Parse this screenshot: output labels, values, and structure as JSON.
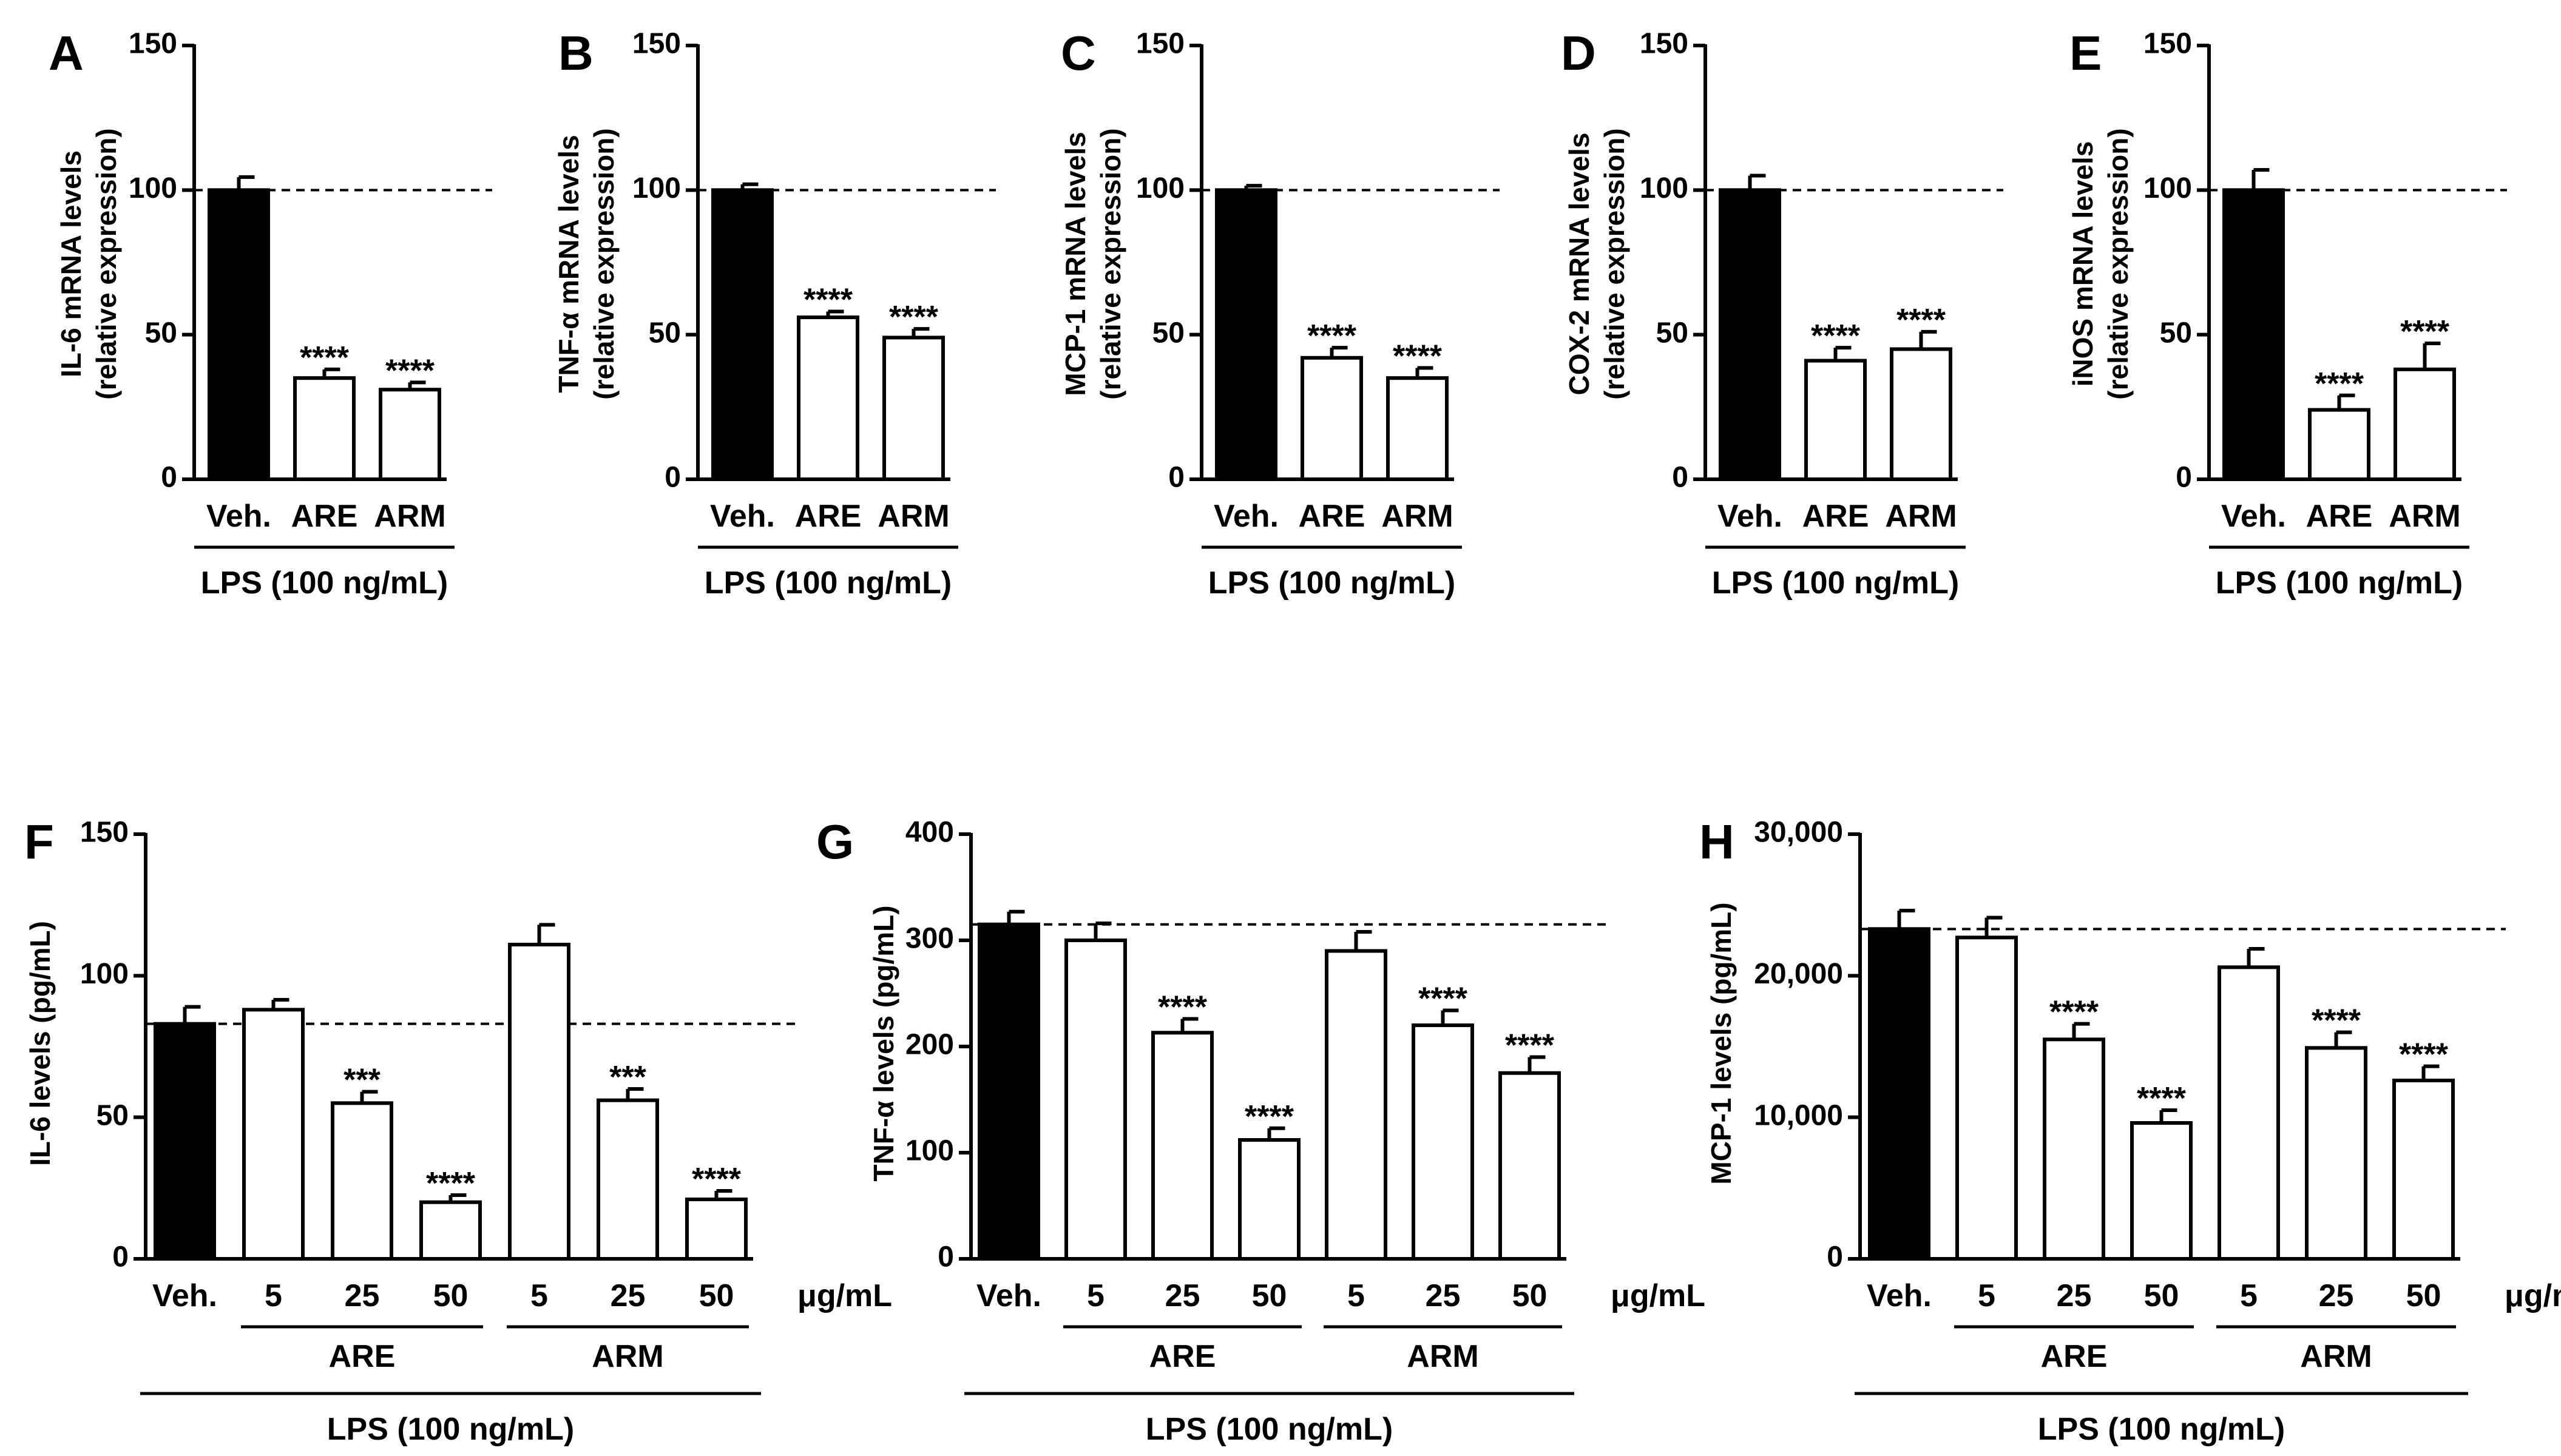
{
  "chart_data": [
    {
      "type": "bar",
      "panel": "A",
      "ylabel": [
        "IL-6 mRNA levels",
        "(relative expression)"
      ],
      "categories": [
        "Veh.",
        "ARE",
        "ARM"
      ],
      "values": [
        100,
        35,
        31
      ],
      "errors": [
        4.5,
        3,
        2.5
      ],
      "fills": [
        "black",
        "white",
        "white"
      ],
      "significance": [
        "",
        "****",
        "****"
      ],
      "ylim": [
        0,
        150
      ],
      "yticks": [
        "0",
        "50",
        "100",
        "150"
      ],
      "reference_line": 100,
      "group_label": "LPS (100 ng/mL)"
    },
    {
      "type": "bar",
      "panel": "B",
      "ylabel": [
        "TNF-α mRNA levels",
        "(relative expression)"
      ],
      "categories": [
        "Veh.",
        "ARE",
        "ARM"
      ],
      "values": [
        100,
        56,
        49
      ],
      "errors": [
        2,
        2,
        3
      ],
      "fills": [
        "black",
        "white",
        "white"
      ],
      "significance": [
        "",
        "****",
        "****"
      ],
      "ylim": [
        0,
        150
      ],
      "yticks": [
        "0",
        "50",
        "100",
        "150"
      ],
      "reference_line": 100,
      "group_label": "LPS (100 ng/mL)"
    },
    {
      "type": "bar",
      "panel": "C",
      "ylabel": [
        "MCP-1 mRNA levels",
        "(relative expression)"
      ],
      "categories": [
        "Veh.",
        "ARE",
        "ARM"
      ],
      "values": [
        100,
        42,
        35
      ],
      "errors": [
        1.5,
        3.5,
        3.5
      ],
      "fills": [
        "black",
        "white",
        "white"
      ],
      "significance": [
        "",
        "****",
        "****"
      ],
      "ylim": [
        0,
        150
      ],
      "yticks": [
        "0",
        "50",
        "100",
        "150"
      ],
      "reference_line": 100,
      "group_label": "LPS (100 ng/mL)"
    },
    {
      "type": "bar",
      "panel": "D",
      "ylabel": [
        "COX-2 mRNA levels",
        "(relative expression)"
      ],
      "categories": [
        "Veh.",
        "ARE",
        "ARM"
      ],
      "values": [
        100,
        41,
        45
      ],
      "errors": [
        5,
        4.5,
        6
      ],
      "fills": [
        "black",
        "white",
        "white"
      ],
      "significance": [
        "",
        "****",
        "****"
      ],
      "ylim": [
        0,
        150
      ],
      "yticks": [
        "0",
        "50",
        "100",
        "150"
      ],
      "reference_line": 100,
      "group_label": "LPS (100 ng/mL)"
    },
    {
      "type": "bar",
      "panel": "E",
      "ylabel": [
        "iNOS mRNA levels",
        "(relative expression)"
      ],
      "categories": [
        "Veh.",
        "ARE",
        "ARM"
      ],
      "values": [
        100,
        24,
        38
      ],
      "errors": [
        7,
        5,
        9
      ],
      "fills": [
        "black",
        "white",
        "white"
      ],
      "significance": [
        "",
        "****",
        "****"
      ],
      "ylim": [
        0,
        150
      ],
      "yticks": [
        "0",
        "50",
        "100",
        "150"
      ],
      "reference_line": 100,
      "group_label": "LPS (100 ng/mL)"
    },
    {
      "type": "bar",
      "panel": "F",
      "ylabel": [
        "IL-6 levels (pg/mL)"
      ],
      "categories": [
        "Veh.",
        "5",
        "25",
        "50",
        "5",
        "25",
        "50"
      ],
      "values": [
        83,
        88,
        55,
        20,
        111,
        56,
        21
      ],
      "errors": [
        6,
        3.5,
        4,
        2.5,
        7,
        4,
        3
      ],
      "fills": [
        "black",
        "white",
        "white",
        "white",
        "white",
        "white",
        "white"
      ],
      "significance": [
        "",
        "",
        "***",
        "****",
        "",
        "***",
        "****"
      ],
      "ylim": [
        0,
        150
      ],
      "yticks": [
        "0",
        "50",
        "100",
        "150"
      ],
      "reference_line": 83,
      "unit_label": "μg/mL",
      "subgroups": [
        {
          "label": "ARE",
          "from": 1,
          "to": 3
        },
        {
          "label": "ARM",
          "from": 4,
          "to": 6
        }
      ],
      "group_label": "LPS (100 ng/mL)"
    },
    {
      "type": "bar",
      "panel": "G",
      "ylabel": [
        "TNF-α levels (pg/mL)"
      ],
      "categories": [
        "Veh.",
        "5",
        "25",
        "50",
        "5",
        "25",
        "50"
      ],
      "values": [
        315,
        300,
        213,
        112,
        290,
        220,
        175
      ],
      "errors": [
        12,
        16,
        13,
        11,
        18,
        14,
        15
      ],
      "fills": [
        "black",
        "white",
        "white",
        "white",
        "white",
        "white",
        "white"
      ],
      "significance": [
        "",
        "",
        "****",
        "****",
        "",
        "****",
        "****"
      ],
      "ylim": [
        0,
        400
      ],
      "yticks": [
        "0",
        "100",
        "200",
        "300",
        "400"
      ],
      "reference_line": 315,
      "unit_label": "μg/mL",
      "subgroups": [
        {
          "label": "ARE",
          "from": 1,
          "to": 3
        },
        {
          "label": "ARM",
          "from": 4,
          "to": 6
        }
      ],
      "group_label": "LPS (100 ng/mL)"
    },
    {
      "type": "bar",
      "panel": "H",
      "ylabel": [
        "MCP-1 levels (pg/mL)"
      ],
      "categories": [
        "Veh.",
        "5",
        "25",
        "50",
        "5",
        "25",
        "50"
      ],
      "values": [
        23300,
        22700,
        15500,
        9600,
        20600,
        14900,
        12600
      ],
      "errors": [
        1300,
        1400,
        1100,
        900,
        1300,
        1100,
        1000
      ],
      "fills": [
        "black",
        "white",
        "white",
        "white",
        "white",
        "white",
        "white"
      ],
      "significance": [
        "",
        "",
        "****",
        "****",
        "",
        "****",
        "****"
      ],
      "ylim": [
        0,
        30000
      ],
      "yticks": [
        "0",
        "10,000",
        "20,000",
        "30,000"
      ],
      "reference_line": 23300,
      "unit_label": "μg/mL",
      "subgroups": [
        {
          "label": "ARE",
          "from": 1,
          "to": 3
        },
        {
          "label": "ARM",
          "from": 4,
          "to": 6
        }
      ],
      "group_label": "LPS (100 ng/mL)"
    }
  ]
}
